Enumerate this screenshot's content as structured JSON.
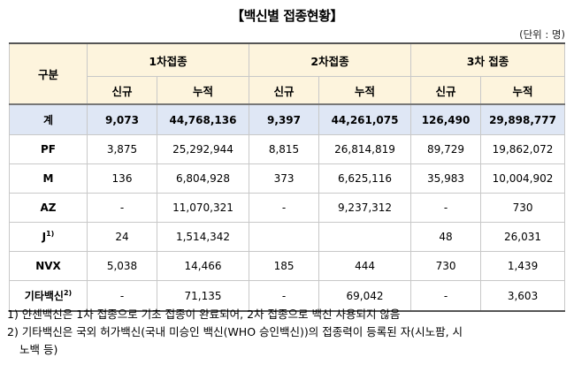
{
  "title": "【백신별 접종현황】",
  "unit": "(단위 : 명)",
  "header": {
    "category": "구분",
    "groups": [
      "1차접종",
      "2차접종",
      "3차 접종"
    ],
    "sub": [
      "신규",
      "누적",
      "신규",
      "누적",
      "신규",
      "누적"
    ]
  },
  "rows": [
    {
      "label": "계",
      "sup": "",
      "values": [
        "9,073",
        "44,768,136",
        "9,397",
        "44,261,075",
        "126,490",
        "29,898,777"
      ]
    },
    {
      "label": "PF",
      "sup": "",
      "values": [
        "3,875",
        "25,292,944",
        "8,815",
        "26,814,819",
        "89,729",
        "19,862,072"
      ]
    },
    {
      "label": "M",
      "sup": "",
      "values": [
        "136",
        "6,804,928",
        "373",
        "6,625,116",
        "35,983",
        "10,004,902"
      ]
    },
    {
      "label": "AZ",
      "sup": "",
      "values": [
        "-",
        "11,070,321",
        "-",
        "9,237,312",
        "-",
        "730"
      ]
    },
    {
      "label": "J",
      "sup": "1)",
      "values": [
        "24",
        "1,514,342",
        "",
        "",
        "48",
        "26,031"
      ]
    },
    {
      "label": "NVX",
      "sup": "",
      "values": [
        "5,038",
        "14,466",
        "185",
        "444",
        "730",
        "1,439"
      ]
    },
    {
      "label": "기타백신",
      "sup": "2)",
      "values": [
        "-",
        "71,135",
        "-",
        "69,042",
        "-",
        "3,603"
      ]
    }
  ],
  "notes": {
    "n1": "1) 얀센백신은 1차 접종으로 기초 접종이 완료되어, 2차 접종으로 백신 사용되지 않음",
    "n2a": "2) 기타백신은 국외 허가백신(국내 미승인 백신(WHO 승인백신))의 접종력이 등록된 자(시노팜, 시",
    "n2b": "노백 등)"
  }
}
